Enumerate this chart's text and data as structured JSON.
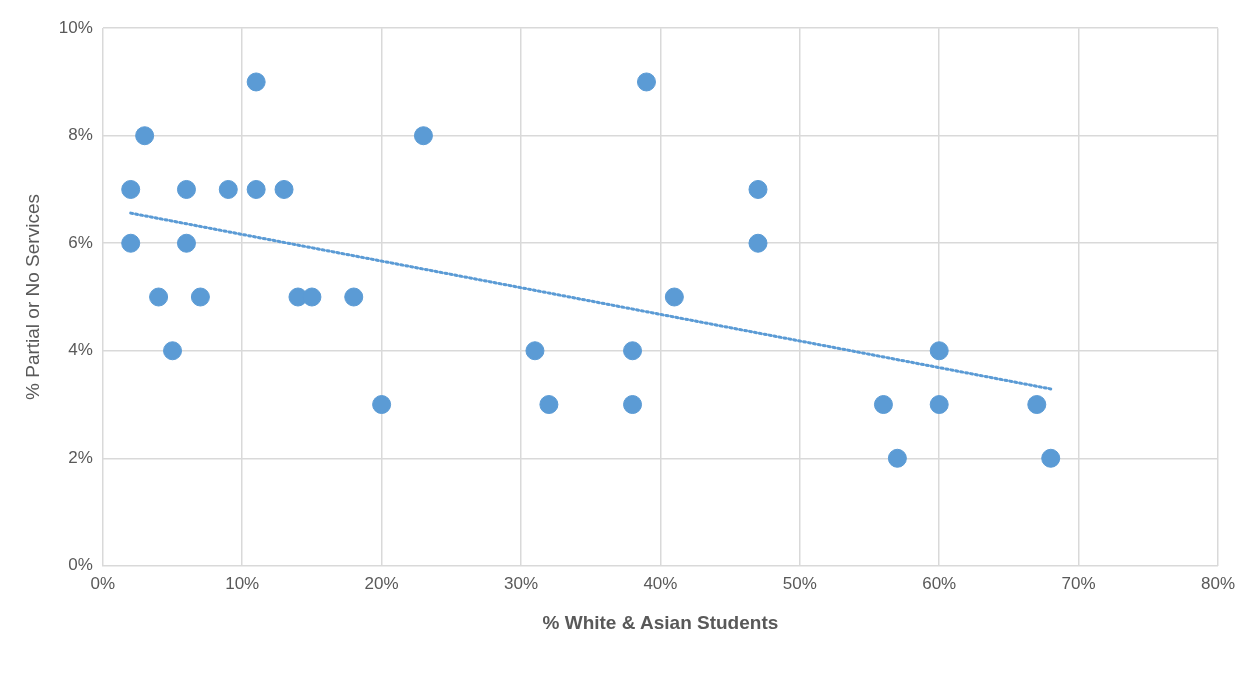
{
  "chart_data": {
    "type": "scatter",
    "xlabel": "% White & Asian Students",
    "ylabel": "% Partial or No Services",
    "grid": true,
    "legend": false,
    "xlim": [
      0,
      80
    ],
    "ylim": [
      0,
      10
    ],
    "xticks": [
      {
        "value": 0,
        "label": "0%"
      },
      {
        "value": 10,
        "label": "10%"
      },
      {
        "value": 20,
        "label": "20%"
      },
      {
        "value": 30,
        "label": "30%"
      },
      {
        "value": 40,
        "label": "40%"
      },
      {
        "value": 50,
        "label": "50%"
      },
      {
        "value": 60,
        "label": "60%"
      },
      {
        "value": 70,
        "label": "70%"
      },
      {
        "value": 80,
        "label": "80%"
      }
    ],
    "yticks": [
      {
        "value": 0,
        "label": "0%"
      },
      {
        "value": 2,
        "label": "2%"
      },
      {
        "value": 4,
        "label": "4%"
      },
      {
        "value": 6,
        "label": "6%"
      },
      {
        "value": 8,
        "label": "8%"
      },
      {
        "value": 10,
        "label": "10%"
      }
    ],
    "series": [
      {
        "marker": "circle",
        "color": "#5b9bd5",
        "x": [
          2,
          2,
          3,
          4,
          5,
          6,
          6,
          7,
          9,
          11,
          11,
          13,
          14,
          15,
          18,
          20,
          23,
          31,
          32,
          38,
          38,
          39,
          41,
          47,
          47,
          56,
          57,
          60,
          60,
          67,
          68
        ],
        "values": [
          7,
          6,
          8,
          5,
          4,
          7,
          6,
          5,
          7,
          9,
          7,
          7,
          5,
          5,
          5,
          3,
          8,
          4,
          3,
          4,
          3,
          9,
          5,
          7,
          6,
          3,
          2,
          4,
          3,
          3,
          2
        ]
      },
      {
        "type": "line",
        "marker": "none",
        "color": "#5b9bd5",
        "line_style": "dotted",
        "x": [
          2,
          68
        ],
        "values": [
          6.56,
          3.29
        ]
      }
    ]
  }
}
